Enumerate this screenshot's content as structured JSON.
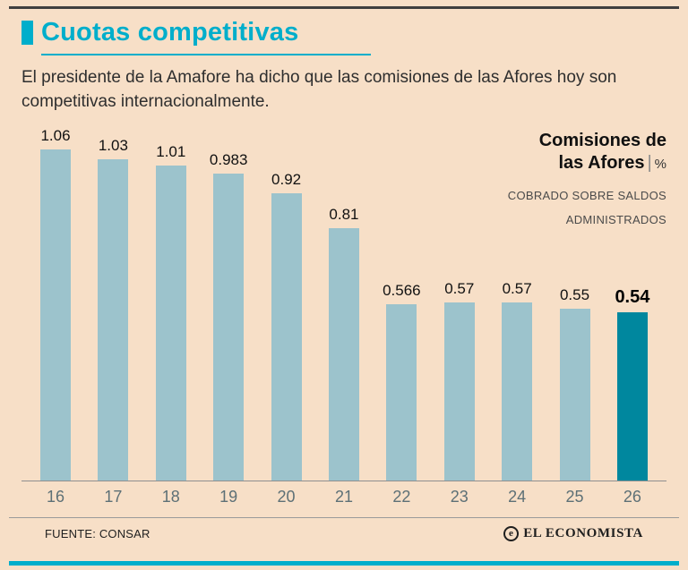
{
  "colors": {
    "accent_teal": "#00aecb",
    "background": "#f7dfc7",
    "bar": "#9cc3cc",
    "bar_highlight": "#00879e"
  },
  "header": {
    "title": "Cuotas competitivas",
    "subtitle": "El presidente de la Amafore ha dicho que las comisiones de las Afores hoy son competitivas internacionalmente."
  },
  "legend": {
    "title_line1": "Comisiones de",
    "title_line2": "las Afores",
    "separator": "|",
    "unit": "%",
    "sub_line1": "COBRADO SOBRE SALDOS",
    "sub_line2": "ADMINISTRADOS"
  },
  "chart_data": {
    "type": "bar",
    "title": "Comisiones de las Afores",
    "unit": "%",
    "note": "COBRADO SOBRE SALDOS ADMINISTRADOS",
    "categories": [
      "16",
      "17",
      "18",
      "19",
      "20",
      "21",
      "22",
      "23",
      "24",
      "25",
      "26"
    ],
    "values": [
      1.06,
      1.03,
      1.01,
      0.983,
      0.92,
      0.81,
      0.566,
      0.57,
      0.57,
      0.55,
      0.54
    ],
    "value_labels": [
      "1.06",
      "1.03",
      "1.01",
      "0.983",
      "0.92",
      "0.81",
      "0.566",
      "0.57",
      "0.57",
      "0.55",
      "0.54"
    ],
    "highlight_index": 10,
    "xlabel": "",
    "ylabel": "",
    "ylim": [
      0,
      1.06
    ],
    "grid": false,
    "legend_position": "top-right"
  },
  "footer": {
    "source": "FUENTE: CONSAR",
    "brand": "EL ECONOMISTA"
  }
}
